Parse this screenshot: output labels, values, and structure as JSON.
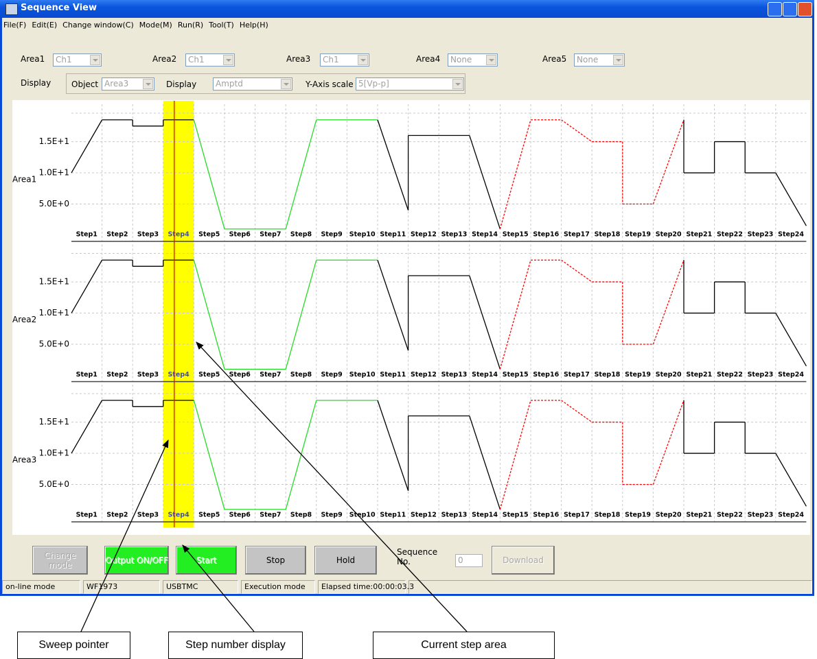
{
  "window": {
    "title": "Sequence View"
  },
  "menu": [
    "File(F)",
    "Edit(E)",
    "Change window(C)",
    "Mode(M)",
    "Run(R)",
    "Tool(T)",
    "Help(H)"
  ],
  "area_selectors": [
    {
      "label": "Area1",
      "value": "Ch1"
    },
    {
      "label": "Area2",
      "value": "Ch1"
    },
    {
      "label": "Area3",
      "value": "Ch1"
    },
    {
      "label": "Area4",
      "value": "None"
    },
    {
      "label": "Area5",
      "value": "None"
    }
  ],
  "display_bar": {
    "label": "Display",
    "object_label": "Object",
    "object_value": "Area3",
    "display_label": "Display",
    "display_value": "Amptd",
    "yscale_label": "Y-Axis scale",
    "yscale_value": "5[Vp-p]"
  },
  "plot": {
    "ylim": [
      0,
      21
    ],
    "yticks": [
      {
        "value": 15,
        "label": "1.5E+1"
      },
      {
        "value": 10,
        "label": "1.0E+1"
      },
      {
        "value": 5,
        "label": "5.0E+0"
      }
    ],
    "current_step_index": 3,
    "areas": [
      {
        "name": "Area1"
      },
      {
        "name": "Area2"
      },
      {
        "name": "Area3"
      }
    ],
    "steps": [
      {
        "label": "Step1",
        "start": 10,
        "end": 18.5,
        "color": "#000000",
        "dashed": false
      },
      {
        "label": "Step2",
        "start": 18.5,
        "end": 18.5,
        "color": "#000000",
        "dashed": false
      },
      {
        "label": "Step3",
        "start": 17.5,
        "end": 17.5,
        "color": "#000000",
        "dashed": false
      },
      {
        "label": "Step4",
        "start": 18.5,
        "end": 18.5,
        "color": "#000000",
        "dashed": false
      },
      {
        "label": "Step5",
        "start": 18.5,
        "end": 1,
        "color": "#22dd22",
        "dashed": false
      },
      {
        "label": "Step6",
        "start": 1,
        "end": 1,
        "color": "#22dd22",
        "dashed": false
      },
      {
        "label": "Step7",
        "start": 1,
        "end": 1,
        "color": "#22dd22",
        "dashed": false
      },
      {
        "label": "Step8",
        "start": 1,
        "end": 18.5,
        "color": "#22dd22",
        "dashed": false
      },
      {
        "label": "Step9",
        "start": 18.5,
        "end": 18.5,
        "color": "#22dd22",
        "dashed": false
      },
      {
        "label": "Step10",
        "start": 18.5,
        "end": 18.5,
        "color": "#22dd22",
        "dashed": false
      },
      {
        "label": "Step11",
        "start": 18.5,
        "end": 4,
        "color": "#000000",
        "dashed": false
      },
      {
        "label": "Step12",
        "start": 16,
        "end": 16,
        "color": "#000000",
        "dashed": false
      },
      {
        "label": "Step13",
        "start": 16,
        "end": 16,
        "color": "#000000",
        "dashed": false
      },
      {
        "label": "Step14",
        "start": 16,
        "end": 1,
        "color": "#000000",
        "dashed": false
      },
      {
        "label": "Step15",
        "start": 1,
        "end": 18.5,
        "color": "#ff0000",
        "dashed": true
      },
      {
        "label": "Step16",
        "start": 18.5,
        "end": 18.5,
        "color": "#ff0000",
        "dashed": true
      },
      {
        "label": "Step17",
        "start": 18.5,
        "end": 15,
        "color": "#ff0000",
        "dashed": true
      },
      {
        "label": "Step18",
        "start": 15,
        "end": 15,
        "color": "#ff0000",
        "dashed": true
      },
      {
        "label": "Step19",
        "start": 5,
        "end": 5,
        "color": "#ff0000",
        "dashed": true
      },
      {
        "label": "Step20",
        "start": 5,
        "end": 18.5,
        "color": "#ff0000",
        "dashed": true
      },
      {
        "label": "Step21",
        "start": 10,
        "end": 10,
        "color": "#000000",
        "dashed": false
      },
      {
        "label": "Step22",
        "start": 15,
        "end": 15,
        "color": "#000000",
        "dashed": false
      },
      {
        "label": "Step23",
        "start": 10,
        "end": 10,
        "color": "#000000",
        "dashed": false
      },
      {
        "label": "Step24",
        "start": 10,
        "end": 1.5,
        "color": "#000000",
        "dashed": false
      }
    ]
  },
  "buttons": [
    {
      "label": "Change mode",
      "enabled": false,
      "color": "#c4c4c4"
    },
    {
      "label": "Output ON/OFF",
      "enabled": false,
      "color": "#22ee22"
    },
    {
      "label": "Start",
      "enabled": false,
      "color": "#22ee22"
    },
    {
      "label": "Stop",
      "enabled": true,
      "color": "#c4c4c4"
    },
    {
      "label": "Hold",
      "enabled": true,
      "color": "#c4c4c4"
    },
    {
      "label": "Download",
      "enabled": false,
      "color": "#ece9d8"
    }
  ],
  "sequence": {
    "label": "Sequence No.",
    "value": "0"
  },
  "status": [
    "on-line mode",
    "WF1973",
    "USBTMC",
    "Execution mode",
    "Elapsed time:00:00:03.3"
  ],
  "callouts": [
    "Sweep pointer",
    "Step number display",
    "Current step area"
  ]
}
